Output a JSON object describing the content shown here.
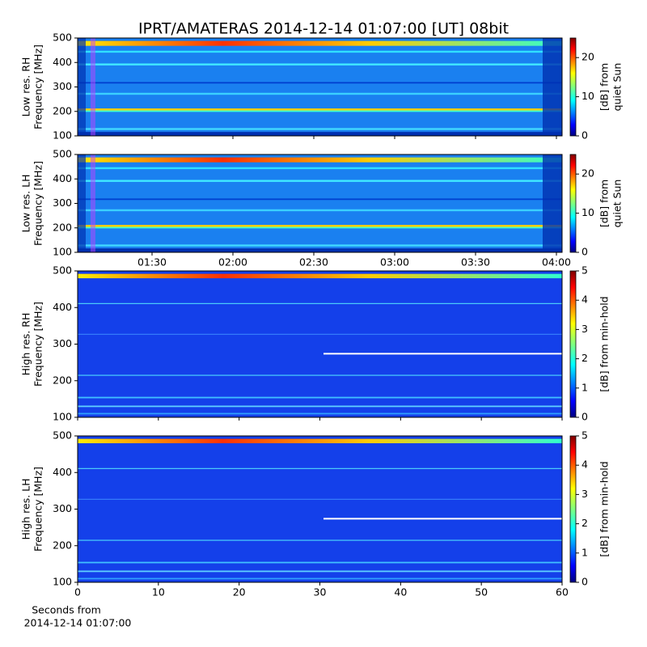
{
  "title": "IPRT/AMATERAS 2014-12-14 01:07:00 [UT]   08bit",
  "chart_data": [
    {
      "type": "spectrogram",
      "ylabel": [
        "Low res. RH",
        "Frequency [MHz]"
      ],
      "ylim": [
        100,
        500
      ],
      "yticks": [
        100,
        200,
        300,
        400,
        500
      ],
      "xlim": [
        62.4,
        242.1
      ],
      "xticks": [
        90,
        120,
        150,
        180,
        210,
        240
      ],
      "show_xticklabels": false,
      "colorbar_label": [
        "[dB] from",
        "quiet Sun"
      ],
      "clim": [
        0,
        25
      ],
      "cticks": [
        0,
        10,
        20
      ],
      "resolution": "low"
    },
    {
      "type": "spectrogram",
      "ylabel": [
        "Low res. LH",
        "Frequency [MHz]"
      ],
      "ylim": [
        100,
        500
      ],
      "yticks": [
        100,
        200,
        300,
        400,
        500
      ],
      "xlim": [
        62.4,
        242.1
      ],
      "xticks": [
        {
          "value": 90,
          "label": "01:30"
        },
        {
          "value": 120,
          "label": "02:00"
        },
        {
          "value": 150,
          "label": "02:30"
        },
        {
          "value": 180,
          "label": "03:00"
        },
        {
          "value": 210,
          "label": "03:30"
        },
        {
          "value": 240,
          "label": "04:00"
        }
      ],
      "show_xticklabels": true,
      "colorbar_label": [
        "[dB] from",
        "quiet Sun"
      ],
      "clim": [
        0,
        25
      ],
      "cticks": [
        0,
        10,
        20
      ],
      "resolution": "low"
    },
    {
      "type": "spectrogram",
      "ylabel": [
        "High res. RH",
        "Frequency [MHz]"
      ],
      "ylim": [
        100,
        500
      ],
      "yticks": [
        100,
        200,
        300,
        400,
        500
      ],
      "xlim": [
        0,
        60
      ],
      "xticks": [
        0,
        10,
        20,
        30,
        40,
        50,
        60
      ],
      "show_xticklabels": false,
      "colorbar_label": [
        "[dB] from min-hold"
      ],
      "clim": [
        0,
        5
      ],
      "cticks": [
        0,
        1,
        2,
        3,
        4,
        5
      ],
      "resolution": "high"
    },
    {
      "type": "spectrogram",
      "ylabel": [
        "High res. LH",
        "Frequency [MHz]"
      ],
      "ylim": [
        100,
        500
      ],
      "yticks": [
        100,
        200,
        300,
        400,
        500
      ],
      "xlim": [
        0,
        60
      ],
      "xticks": [
        0,
        10,
        20,
        30,
        40,
        50,
        60
      ],
      "show_xticklabels": true,
      "xlabel": [
        "Seconds from",
        "2014-12-14 01:07:00"
      ],
      "colorbar_label": [
        "[dB] from min-hold"
      ],
      "clim": [
        0,
        5
      ],
      "cticks": [
        0,
        1,
        2,
        3,
        4,
        5
      ],
      "resolution": "high"
    }
  ]
}
